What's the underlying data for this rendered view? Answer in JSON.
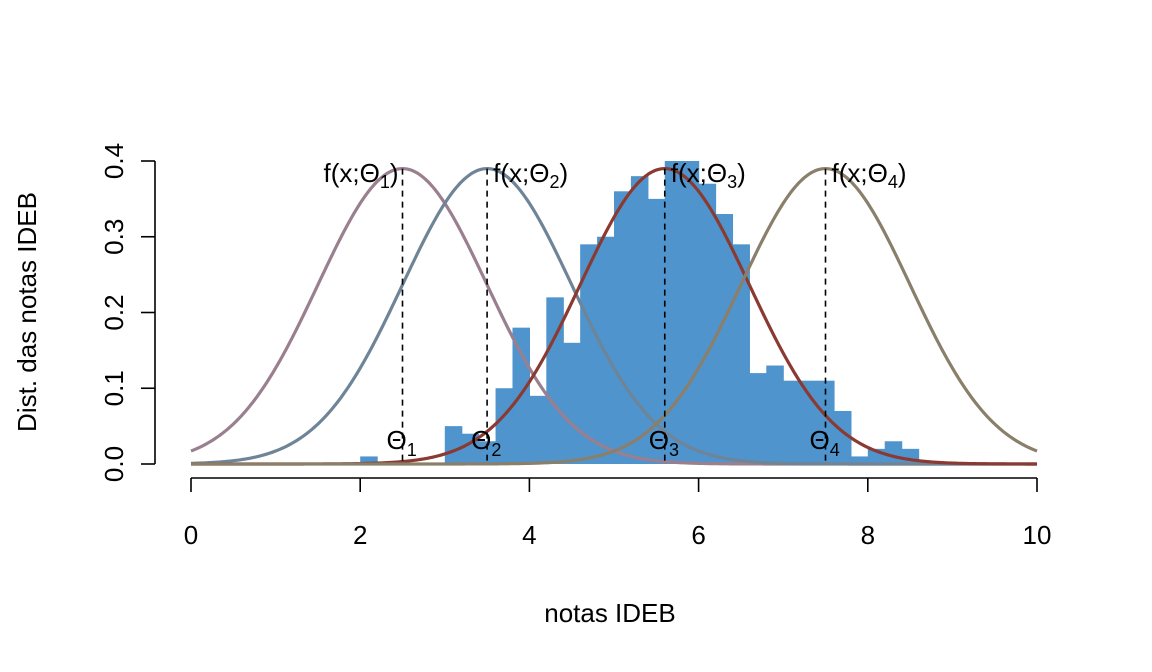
{
  "chart_data": {
    "type": "bar",
    "xlabel": "notas IDEB",
    "ylabel": "Dist. das notas IDEB",
    "xlim": [
      0,
      10
    ],
    "ylim": [
      0,
      0.4
    ],
    "x_ticks": [
      0,
      2,
      4,
      6,
      8,
      10
    ],
    "y_ticks": [
      0.0,
      0.1,
      0.2,
      0.3,
      0.4
    ],
    "x_tick_labels": [
      "0",
      "2",
      "4",
      "6",
      "8",
      "10"
    ],
    "y_tick_labels": [
      "0.0",
      "0.1",
      "0.2",
      "0.3",
      "0.4"
    ],
    "grid": false,
    "bar_color": "#4f94cd",
    "histogram": {
      "bin_width": 0.2,
      "bins": [
        {
          "x0": 2.0,
          "density": 0.01
        },
        {
          "x0": 3.0,
          "density": 0.05
        },
        {
          "x0": 3.2,
          "density": 0.04
        },
        {
          "x0": 3.4,
          "density": 0.03
        },
        {
          "x0": 3.6,
          "density": 0.1
        },
        {
          "x0": 3.8,
          "density": 0.18
        },
        {
          "x0": 4.0,
          "density": 0.09
        },
        {
          "x0": 4.2,
          "density": 0.22
        },
        {
          "x0": 4.4,
          "density": 0.16
        },
        {
          "x0": 4.6,
          "density": 0.29
        },
        {
          "x0": 4.8,
          "density": 0.3
        },
        {
          "x0": 5.0,
          "density": 0.36
        },
        {
          "x0": 5.2,
          "density": 0.38
        },
        {
          "x0": 5.4,
          "density": 0.35
        },
        {
          "x0": 5.6,
          "density": 0.4
        },
        {
          "x0": 5.8,
          "density": 0.4
        },
        {
          "x0": 6.0,
          "density": 0.37
        },
        {
          "x0": 6.2,
          "density": 0.33
        },
        {
          "x0": 6.4,
          "density": 0.29
        },
        {
          "x0": 6.6,
          "density": 0.12
        },
        {
          "x0": 6.8,
          "density": 0.13
        },
        {
          "x0": 7.0,
          "density": 0.11
        },
        {
          "x0": 7.2,
          "density": 0.11
        },
        {
          "x0": 7.4,
          "density": 0.11
        },
        {
          "x0": 7.6,
          "density": 0.07
        },
        {
          "x0": 7.8,
          "density": 0.01
        },
        {
          "x0": 8.0,
          "density": 0.02
        },
        {
          "x0": 8.2,
          "density": 0.03
        },
        {
          "x0": 8.4,
          "density": 0.02
        }
      ]
    },
    "curves": [
      {
        "name": "f(x;Θ1)",
        "label_base": "f(x;Θ",
        "label_sub": "1",
        "label_close": ")",
        "mean": 2.5,
        "sd": 1.0,
        "scale": 0.39,
        "color": "#9a7f8f",
        "theta_label": "Θ",
        "theta_sub": "1"
      },
      {
        "name": "f(x;Θ2)",
        "label_base": "f(x;Θ",
        "label_sub": "2",
        "label_close": ")",
        "mean": 3.5,
        "sd": 1.0,
        "scale": 0.39,
        "color": "#6f8496",
        "theta_label": "Θ",
        "theta_sub": "2"
      },
      {
        "name": "f(x;Θ3)",
        "label_base": "f(x;Θ",
        "label_sub": "3",
        "label_close": ")",
        "mean": 5.6,
        "sd": 1.0,
        "scale": 0.39,
        "color": "#8b3a32",
        "theta_label": "Θ",
        "theta_sub": "3"
      },
      {
        "name": "f(x;Θ4)",
        "label_base": "f(x;Θ",
        "label_sub": "4",
        "label_close": ")",
        "mean": 7.5,
        "sd": 1.0,
        "scale": 0.39,
        "color": "#8a7f6a",
        "theta_label": "Θ",
        "theta_sub": "4"
      }
    ]
  }
}
